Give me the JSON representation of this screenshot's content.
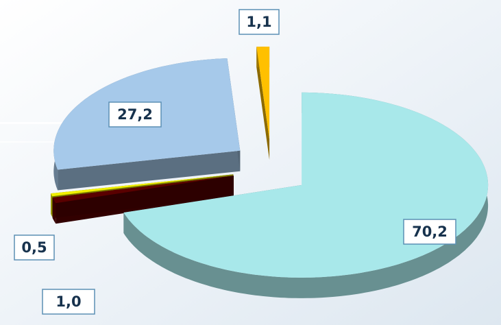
{
  "chart_data": {
    "type": "pie",
    "categories": [
      null,
      null,
      null,
      null,
      null
    ],
    "values": [
      70.2,
      1.0,
      0.5,
      27.2,
      1.1
    ],
    "value_labels": [
      "70,2",
      "1,0",
      "0,5",
      "27,2",
      "1,1"
    ],
    "colors": [
      "#a8e8ea",
      "#5a0000",
      "#f0f000",
      "#a6c9ea",
      "#ffc000"
    ]
  }
}
